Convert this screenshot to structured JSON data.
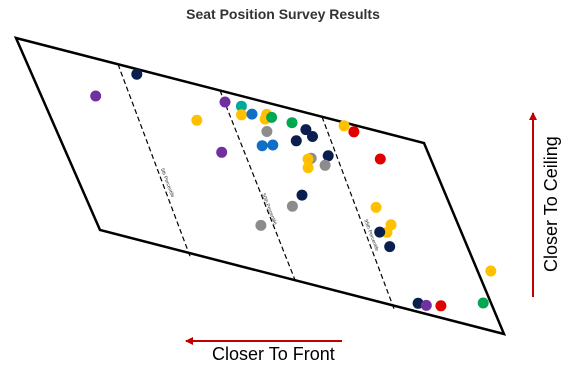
{
  "chart_data": {
    "type": "scatter",
    "title": "Seat Position Survey Results",
    "xlabel": "Closer To Front",
    "ylabel": "Closer To Ceiling",
    "percentile_lines": [
      {
        "label": "5th Percentile",
        "position": 0.25
      },
      {
        "label": "50th Percentile",
        "position": 0.5
      },
      {
        "label": "95th Percentile",
        "position": 0.75
      }
    ],
    "colors": {
      "purple": "#7030a0",
      "navy": "#0b1f4f",
      "yellow": "#ffc000",
      "teal": "#00a99d",
      "blue": "#0f6fc6",
      "green": "#00a651",
      "gray": "#8c8c8c",
      "red": "#e00000"
    },
    "points": [
      {
        "color": "purple",
        "u": 0.15,
        "v": 0.22
      },
      {
        "color": "navy",
        "u": 0.29,
        "v": 0.03
      },
      {
        "color": "yellow",
        "u": 0.4,
        "v": 0.21
      },
      {
        "color": "purple",
        "u": 0.43,
        "v": 0.36
      },
      {
        "color": "purple",
        "u": 0.5,
        "v": 0.06
      },
      {
        "color": "teal",
        "u": 0.54,
        "v": 0.06
      },
      {
        "color": "yellow",
        "u": 0.53,
        "v": 0.11
      },
      {
        "color": "blue",
        "u": 0.56,
        "v": 0.09
      },
      {
        "color": "yellow",
        "u": 0.59,
        "v": 0.1
      },
      {
        "color": "yellow",
        "u": 0.6,
        "v": 0.07
      },
      {
        "color": "green",
        "u": 0.61,
        "v": 0.08
      },
      {
        "color": "gray",
        "u": 0.58,
        "v": 0.17
      },
      {
        "color": "blue",
        "u": 0.55,
        "v": 0.26
      },
      {
        "color": "blue",
        "u": 0.58,
        "v": 0.24
      },
      {
        "color": "green",
        "u": 0.66,
        "v": 0.08
      },
      {
        "color": "navy",
        "u": 0.65,
        "v": 0.18
      },
      {
        "color": "navy",
        "u": 0.69,
        "v": 0.1
      },
      {
        "color": "navy",
        "u": 0.7,
        "v": 0.13
      },
      {
        "color": "navy",
        "u": 0.72,
        "v": 0.22
      },
      {
        "color": "gray",
        "u": 0.67,
        "v": 0.26
      },
      {
        "color": "yellow",
        "u": 0.66,
        "v": 0.27
      },
      {
        "color": "yellow",
        "u": 0.65,
        "v": 0.32
      },
      {
        "color": "gray",
        "u": 0.7,
        "v": 0.28
      },
      {
        "color": "yellow",
        "u": 0.8,
        "v": 0.02
      },
      {
        "color": "red",
        "u": 0.82,
        "v": 0.04
      },
      {
        "color": "red",
        "u": 0.86,
        "v": 0.16
      },
      {
        "color": "navy",
        "u": 0.6,
        "v": 0.49
      },
      {
        "color": "gray",
        "u": 0.56,
        "v": 0.57
      },
      {
        "color": "gray",
        "u": 0.45,
        "v": 0.73
      },
      {
        "color": "yellow",
        "u": 0.79,
        "v": 0.45
      },
      {
        "color": "yellow",
        "u": 0.81,
        "v": 0.53
      },
      {
        "color": "yellow",
        "u": 0.79,
        "v": 0.58
      },
      {
        "color": "navy",
        "u": 0.77,
        "v": 0.59
      },
      {
        "color": "navy",
        "u": 0.78,
        "v": 0.66
      },
      {
        "color": "navy",
        "u": 0.79,
        "v": 0.95
      },
      {
        "color": "purple",
        "u": 0.81,
        "v": 0.95
      },
      {
        "color": "red",
        "u": 0.85,
        "v": 0.93
      },
      {
        "color": "green",
        "u": 0.97,
        "v": 0.85
      },
      {
        "color": "yellow",
        "u": 1.03,
        "v": 0.65
      }
    ]
  }
}
